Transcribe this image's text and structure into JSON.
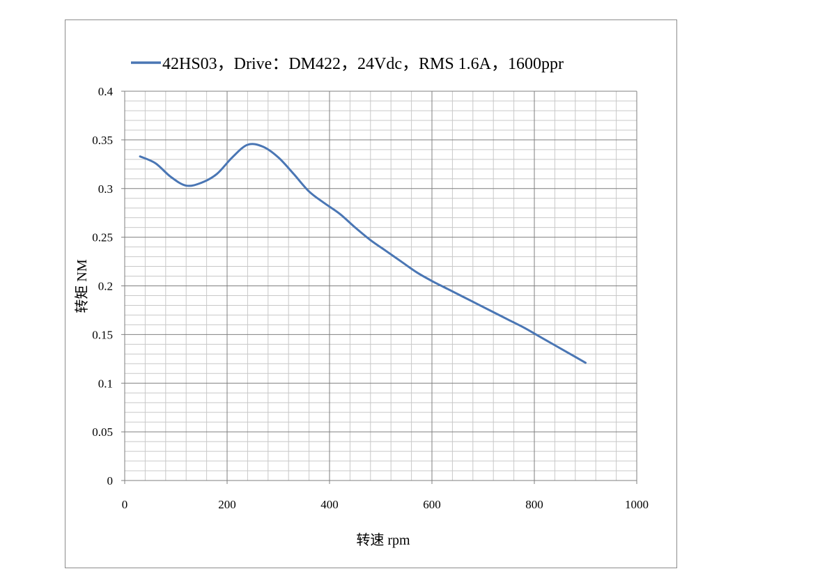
{
  "chart_data": {
    "type": "line",
    "title": "",
    "legend": {
      "placement": "top",
      "entries": [
        "42HS03，Drive：DM422，24Vdc，RMS 1.6A，1600ppr"
      ]
    },
    "xlabel": "转速 rpm",
    "ylabel": "转矩 NM",
    "xlim": [
      0,
      1000
    ],
    "ylim": [
      0,
      0.4
    ],
    "x_ticks": [
      "0",
      "200",
      "400",
      "600",
      "800",
      "1000"
    ],
    "y_ticks": [
      "0",
      "0.05",
      "0.1",
      "0.15",
      "0.2",
      "0.25",
      "0.3",
      "0.35",
      "0.4"
    ],
    "grid": true,
    "series": [
      {
        "name": "42HS03，Drive：DM422，24Vdc，RMS 1.6A，1600ppr",
        "color": "#4a76b4",
        "x": [
          30,
          60,
          90,
          120,
          150,
          180,
          210,
          240,
          270,
          300,
          330,
          360,
          390,
          420,
          450,
          480,
          510,
          540,
          570,
          600,
          630,
          660,
          690,
          720,
          750,
          780,
          810,
          840,
          870,
          900
        ],
        "y": [
          0.333,
          0.326,
          0.312,
          0.303,
          0.306,
          0.315,
          0.332,
          0.345,
          0.343,
          0.332,
          0.315,
          0.297,
          0.285,
          0.274,
          0.26,
          0.247,
          0.236,
          0.225,
          0.214,
          0.205,
          0.197,
          0.189,
          0.181,
          0.173,
          0.165,
          0.157,
          0.148,
          0.139,
          0.13,
          0.121
        ]
      }
    ]
  }
}
